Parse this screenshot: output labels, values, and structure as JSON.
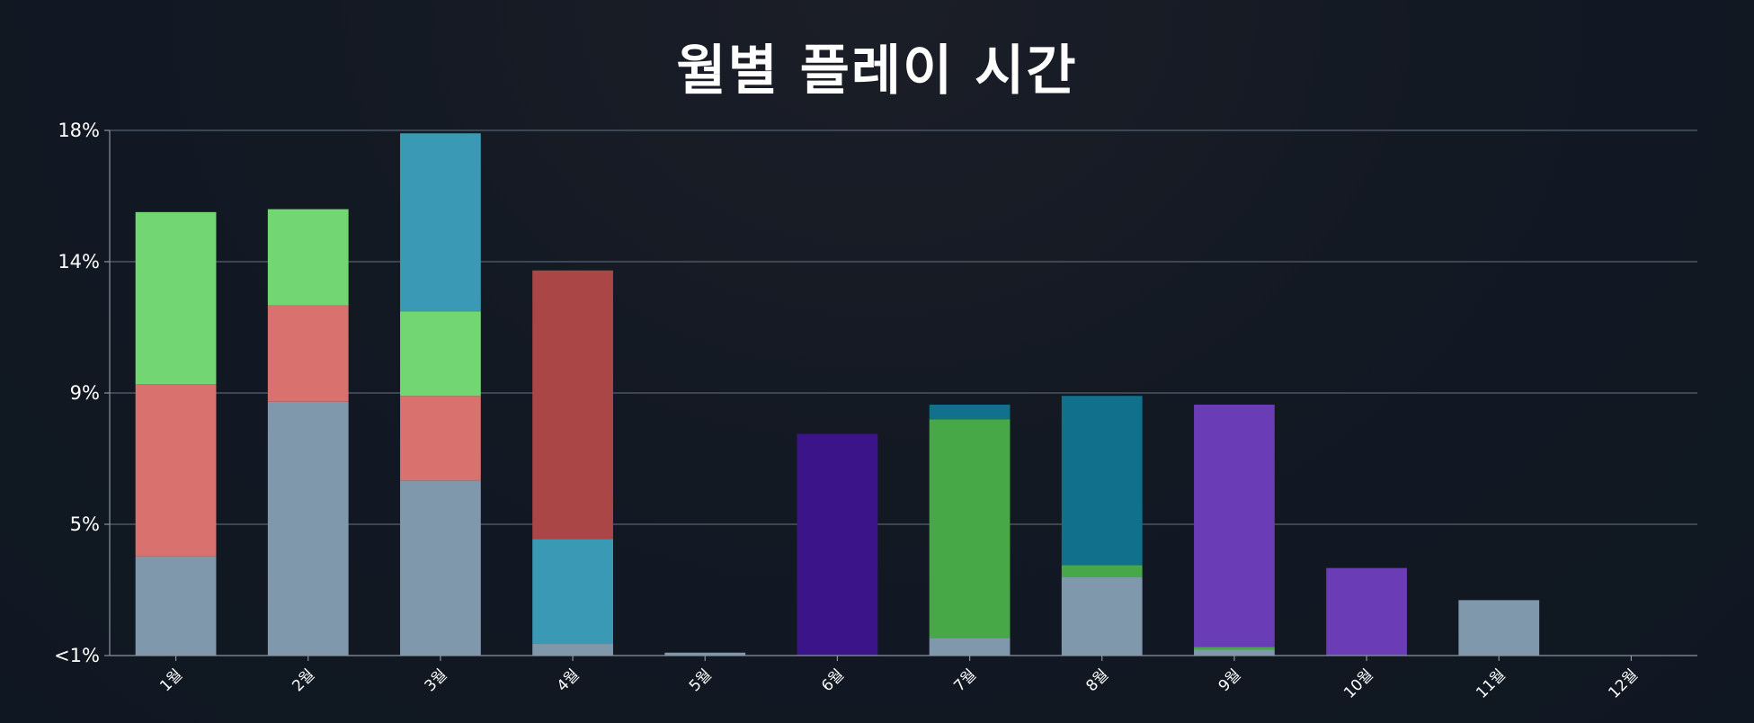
{
  "chart_data": {
    "type": "bar",
    "stacked": true,
    "title": "월별 플레이 시간",
    "xlabel": "",
    "ylabel": "",
    "categories": [
      "1월",
      "2월",
      "3월",
      "4월",
      "5월",
      "6월",
      "7월",
      "8월",
      "9월",
      "10월",
      "11월",
      "12월"
    ],
    "y_ticks": [
      "<1%",
      "5%",
      "9%",
      "14%",
      "18%"
    ],
    "ylim": [
      0,
      18
    ],
    "grid": true,
    "legend": "none",
    "series": [
      {
        "color": "#7f98ab",
        "values": [
          3.4,
          8.7,
          6.0,
          0.4,
          0.1,
          0,
          0.6,
          2.7,
          0.2,
          0,
          1.9,
          0
        ]
      },
      {
        "color": "#d9716f",
        "values": [
          5.9,
          3.3,
          2.9,
          0,
          0,
          0,
          0,
          0,
          0,
          0,
          0,
          0
        ]
      },
      {
        "color": "#72d672",
        "values": [
          5.9,
          3.3,
          2.9,
          0,
          0,
          0,
          0,
          0,
          0,
          0,
          0,
          0
        ]
      },
      {
        "color": "#3a9ab5",
        "values": [
          0,
          0,
          6.1,
          3.6,
          0,
          0,
          0,
          0,
          0,
          0,
          0,
          0
        ]
      },
      {
        "color": "#aa4646",
        "values": [
          0,
          0,
          0,
          9.2,
          0,
          0,
          0,
          0,
          0,
          0,
          0,
          0
        ]
      },
      {
        "color": "#3c1489",
        "values": [
          0,
          0,
          0,
          0,
          0,
          7.6,
          0,
          0,
          0,
          0,
          0,
          0
        ]
      },
      {
        "color": "#46a846",
        "values": [
          0,
          0,
          0,
          0,
          0,
          0,
          7.5,
          0.4,
          0.1,
          0,
          0,
          0
        ]
      },
      {
        "color": "#11708b",
        "values": [
          0,
          0,
          0,
          0,
          0,
          0,
          0.5,
          5.8,
          0,
          0,
          0,
          0
        ]
      },
      {
        "color": "#6a3cb5",
        "values": [
          0,
          0,
          0,
          0,
          0,
          0,
          0,
          0,
          8.3,
          3.0,
          0,
          0
        ]
      }
    ]
  }
}
